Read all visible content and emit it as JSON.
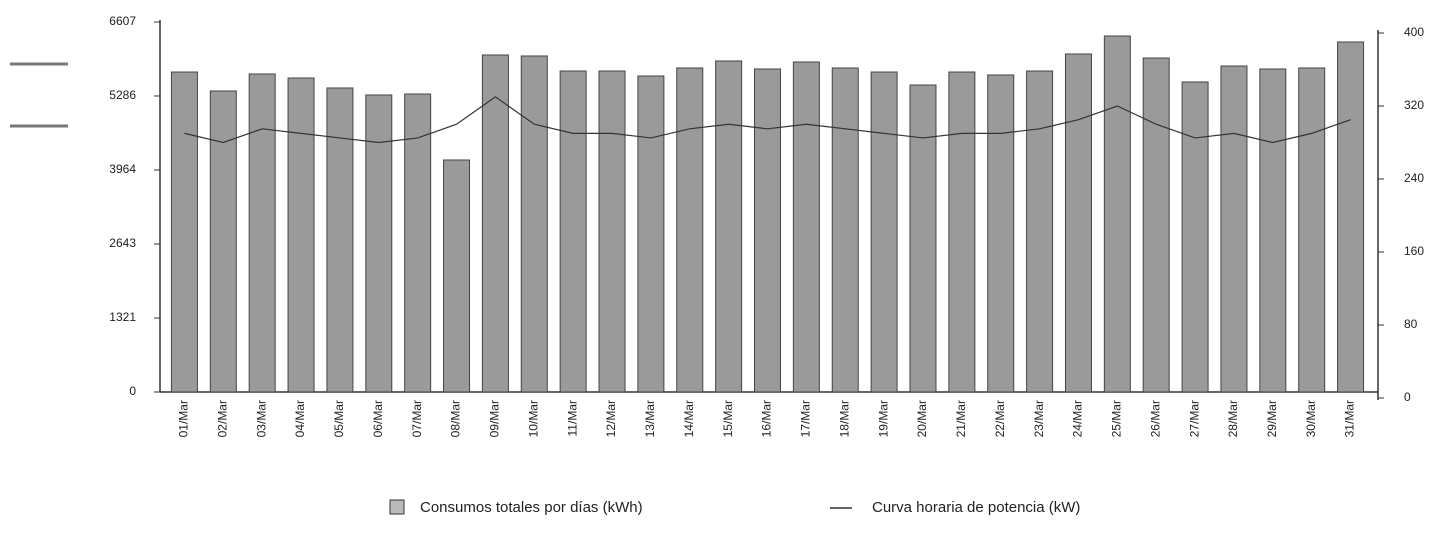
{
  "chart_data": {
    "type": "bar",
    "categories": [
      "01/Mar",
      "02/Mar",
      "03/Mar",
      "04/Mar",
      "05/Mar",
      "06/Mar",
      "07/Mar",
      "08/Mar",
      "09/Mar",
      "10/Mar",
      "11/Mar",
      "12/Mar",
      "13/Mar",
      "14/Mar",
      "15/Mar",
      "16/Mar",
      "17/Mar",
      "18/Mar",
      "19/Mar",
      "20/Mar",
      "21/Mar",
      "22/Mar",
      "23/Mar",
      "24/Mar",
      "25/Mar",
      "26/Mar",
      "27/Mar",
      "28/Mar",
      "29/Mar",
      "30/Mar",
      "31/Mar"
    ],
    "series": [
      {
        "name": "Consumos totales por días (kWh)",
        "color": "#9a9a9a",
        "values": [
          5714,
          5375,
          5679,
          5607,
          5429,
          5304,
          5321,
          4143,
          6018,
          6000,
          5732,
          5732,
          5643,
          5786,
          5911,
          5768,
          5893,
          5786,
          5714,
          5482,
          5714,
          5661,
          5732,
          6036,
          6357,
          5964,
          5536,
          5821,
          5768,
          5786,
          6250
        ]
      },
      {
        "name": "Curva horaria de potencia (kW)",
        "color": "#333333",
        "axis": "y2",
        "values": [
          290,
          280,
          295,
          290,
          285,
          280,
          285,
          300,
          330,
          300,
          290,
          290,
          285,
          295,
          300,
          295,
          300,
          295,
          290,
          285,
          290,
          290,
          295,
          305,
          320,
          300,
          285,
          290,
          280,
          290,
          305
        ]
      }
    ],
    "ylim": [
      0,
      6607
    ],
    "yticks": [
      0,
      1321,
      2643,
      3964,
      5286,
      6607
    ],
    "y2lim": [
      0,
      400
    ],
    "y2ticks": [
      0,
      80,
      160,
      240,
      320,
      400
    ]
  }
}
